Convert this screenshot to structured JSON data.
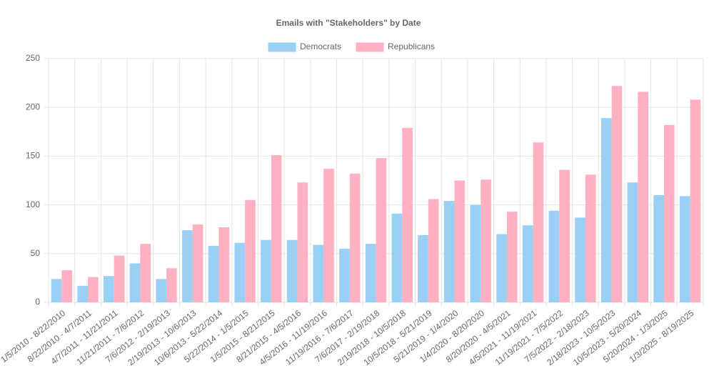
{
  "chart_data": {
    "type": "bar",
    "title": "Emails with \"Stakeholders\" by Date",
    "categories": [
      "1/5/2010 - 8/22/2010",
      "8/22/2010 - 4/7/2011",
      "4/7/2011 - 11/21/2011",
      "11/21/2011 - 7/6/2012",
      "7/6/2012 - 2/19/2013",
      "2/19/2013 - 10/6/2013",
      "10/6/2013 - 5/22/2014",
      "5/22/2014 - 1/5/2015",
      "1/5/2015 - 8/21/2015",
      "8/21/2015 - 4/5/2016",
      "4/5/2016 - 11/19/2016",
      "11/19/2016 - 7/6/2017",
      "7/6/2017 - 2/19/2018",
      "2/19/2018 - 10/5/2018",
      "10/5/2018 - 5/21/2019",
      "5/21/2019 - 1/4/2020",
      "1/4/2020 - 8/20/2020",
      "8/20/2020 - 4/5/2021",
      "4/5/2021 - 11/19/2021",
      "11/19/2021 - 7/5/2022",
      "7/5/2022 - 2/18/2023",
      "2/18/2023 - 10/5/2023",
      "10/5/2023 - 5/20/2024",
      "5/20/2024 - 1/3/2025",
      "1/3/2025 - 8/19/2025"
    ],
    "series": [
      {
        "name": "Democrats",
        "color": "#9ad0f5",
        "values": [
          24,
          17,
          27,
          40,
          24,
          74,
          58,
          61,
          64,
          64,
          59,
          55,
          60,
          91,
          69,
          104,
          100,
          70,
          79,
          94,
          87,
          189,
          123,
          110,
          109
        ]
      },
      {
        "name": "Republicans",
        "color": "#ffb1c1",
        "values": [
          33,
          26,
          48,
          60,
          35,
          80,
          77,
          105,
          151,
          123,
          137,
          132,
          148,
          179,
          106,
          125,
          126,
          93,
          164,
          136,
          131,
          222,
          216,
          182,
          208
        ]
      }
    ],
    "ylim": [
      0,
      250
    ],
    "yticks": [
      0,
      50,
      100,
      150,
      200,
      250
    ],
    "grid": true
  }
}
